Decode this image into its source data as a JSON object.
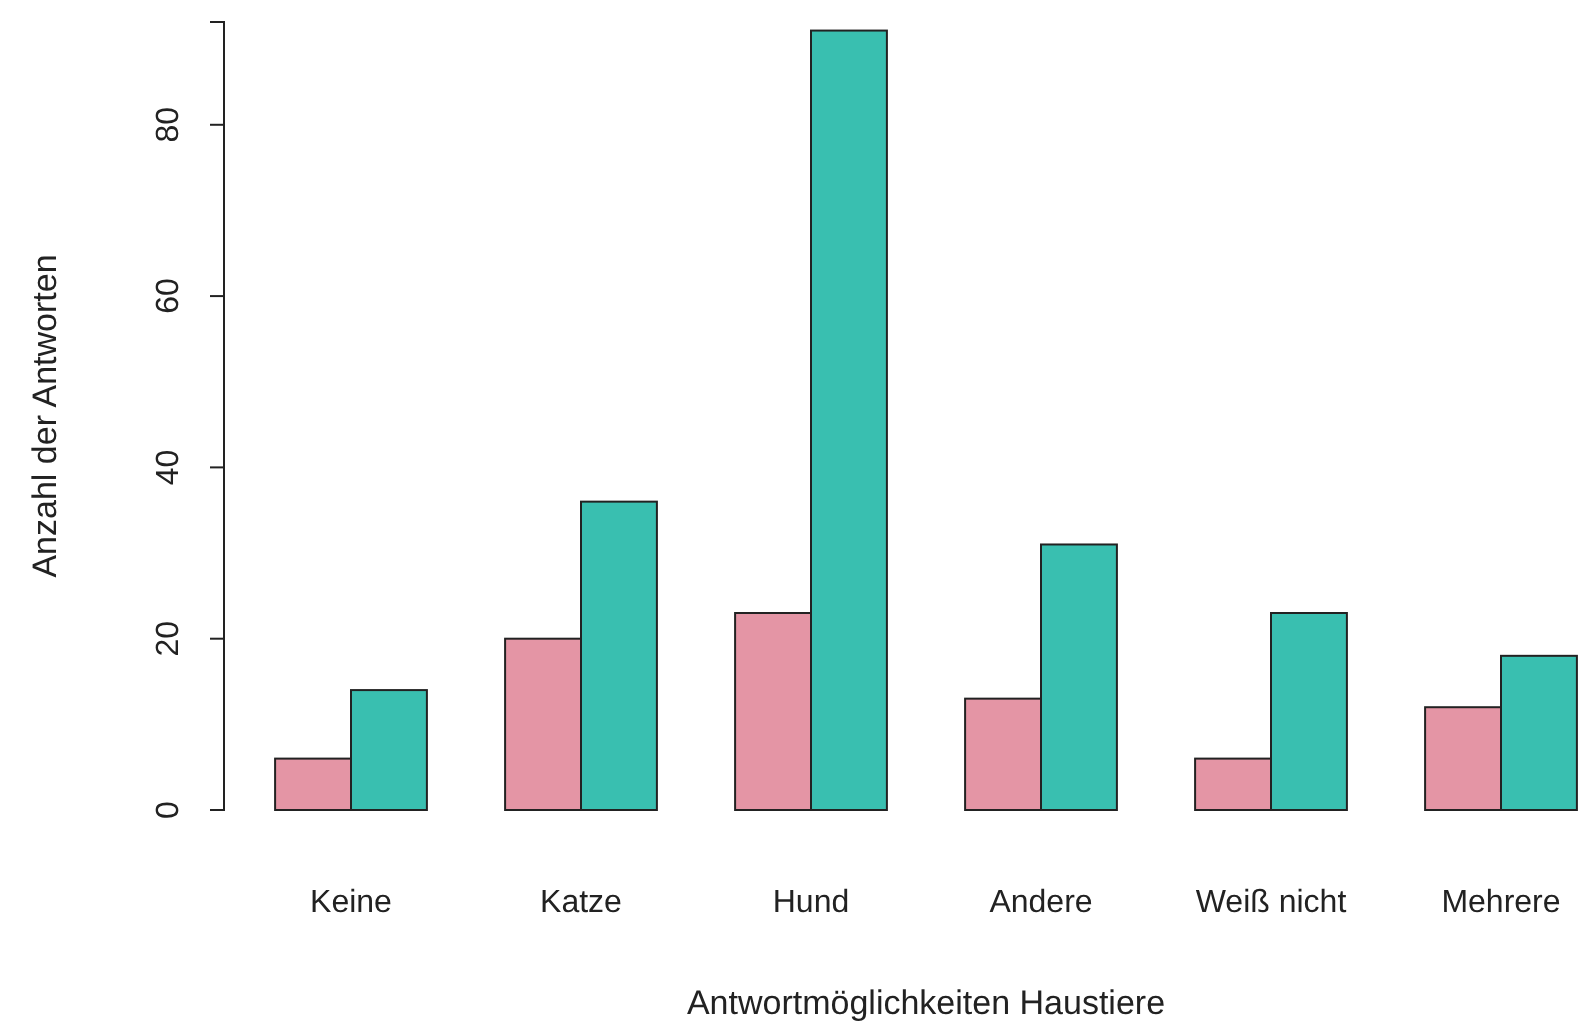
{
  "chart_data": {
    "type": "bar",
    "xlabel": "Antwortmöglichkeiten Haustiere",
    "ylabel": "Anzahl der Antworten",
    "categories": [
      "Keine",
      "Katze",
      "Hund",
      "Andere",
      "Weiß nicht",
      "Mehrere"
    ],
    "series": [
      {
        "color": "#e495a5",
        "values": [
          6,
          20,
          23,
          13,
          6,
          12
        ]
      },
      {
        "color": "#39bfb0",
        "values": [
          14,
          36,
          91,
          31,
          23,
          18
        ]
      }
    ],
    "ylim": [
      0,
      92
    ],
    "yticks": [
      0,
      20,
      40,
      60,
      80
    ],
    "grid": false
  }
}
